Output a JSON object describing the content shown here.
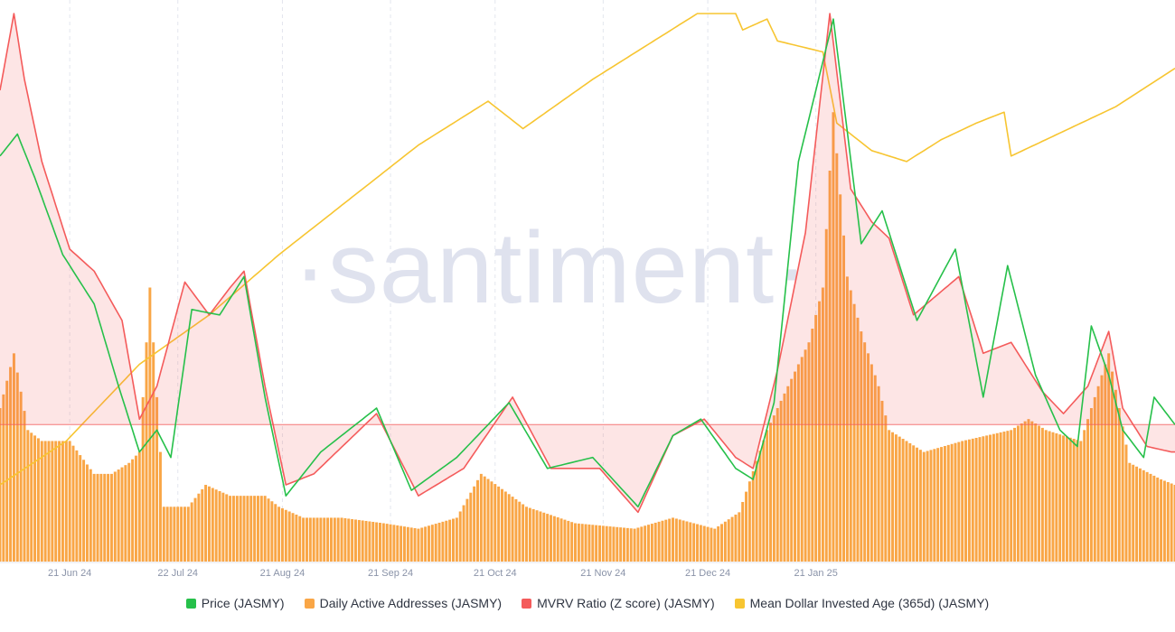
{
  "watermark": "·santiment·",
  "chart_data": {
    "type": "line",
    "x_tick_labels": [
      "21 Jun 24",
      "22 Jul 24",
      "21 Aug 24",
      "21 Sep 24",
      "21 Oct 24",
      "21 Nov 24",
      "21 Dec 24",
      "21 Jan 25"
    ],
    "x_range": [
      "2024-06-01",
      "2025-02-16"
    ],
    "grid": true,
    "legend_position": "bottom",
    "bar_step_days": 1,
    "series": [
      {
        "name": "Price (JASMY)",
        "type": "line",
        "color": "#26c04a",
        "values": [
          [
            0,
            0.74
          ],
          [
            5,
            0.78
          ],
          [
            10,
            0.7
          ],
          [
            18,
            0.56
          ],
          [
            27,
            0.47
          ],
          [
            34,
            0.32
          ],
          [
            40,
            0.2
          ],
          [
            45,
            0.24
          ],
          [
            49,
            0.19
          ],
          [
            55,
            0.46
          ],
          [
            63,
            0.45
          ],
          [
            70,
            0.52
          ],
          [
            76,
            0.3
          ],
          [
            82,
            0.12
          ],
          [
            92,
            0.2
          ],
          [
            108,
            0.28
          ],
          [
            118,
            0.13
          ],
          [
            131,
            0.19
          ],
          [
            146,
            0.29
          ],
          [
            157,
            0.17
          ],
          [
            170,
            0.19
          ],
          [
            183,
            0.1
          ],
          [
            193,
            0.23
          ],
          [
            201,
            0.26
          ],
          [
            211,
            0.17
          ],
          [
            216,
            0.15
          ],
          [
            222,
            0.29
          ],
          [
            229,
            0.73
          ],
          [
            239,
            0.99
          ],
          [
            247,
            0.58
          ],
          [
            253,
            0.64
          ],
          [
            263,
            0.44
          ],
          [
            274,
            0.57
          ],
          [
            282,
            0.3
          ],
          [
            289,
            0.54
          ],
          [
            297,
            0.34
          ],
          [
            304,
            0.24
          ],
          [
            309,
            0.21
          ],
          [
            313,
            0.43
          ],
          [
            318,
            0.34
          ],
          [
            322,
            0.24
          ],
          [
            328,
            0.19
          ],
          [
            331,
            0.3
          ],
          [
            337,
            0.25
          ]
        ]
      },
      {
        "name": "Daily Active Addresses (JASMY)",
        "type": "bar",
        "color": "#f9a646",
        "values": [
          [
            0,
            0.28
          ],
          [
            4,
            0.38
          ],
          [
            8,
            0.24
          ],
          [
            12,
            0.22
          ],
          [
            20,
            0.22
          ],
          [
            27,
            0.16
          ],
          [
            32,
            0.16
          ],
          [
            37,
            0.18
          ],
          [
            40,
            0.2
          ],
          [
            43,
            0.5
          ],
          [
            47,
            0.1
          ],
          [
            54,
            0.1
          ],
          [
            59,
            0.14
          ],
          [
            66,
            0.12
          ],
          [
            76,
            0.12
          ],
          [
            80,
            0.1
          ],
          [
            87,
            0.08
          ],
          [
            98,
            0.08
          ],
          [
            110,
            0.07
          ],
          [
            120,
            0.06
          ],
          [
            131,
            0.08
          ],
          [
            138,
            0.16
          ],
          [
            151,
            0.1
          ],
          [
            165,
            0.07
          ],
          [
            182,
            0.06
          ],
          [
            193,
            0.08
          ],
          [
            205,
            0.06
          ],
          [
            212,
            0.09
          ],
          [
            220,
            0.24
          ],
          [
            226,
            0.32
          ],
          [
            232,
            0.4
          ],
          [
            236,
            0.5
          ],
          [
            239,
            0.82
          ],
          [
            243,
            0.52
          ],
          [
            247,
            0.42
          ],
          [
            252,
            0.32
          ],
          [
            255,
            0.24
          ],
          [
            265,
            0.2
          ],
          [
            276,
            0.22
          ],
          [
            290,
            0.24
          ],
          [
            295,
            0.26
          ],
          [
            300,
            0.24
          ],
          [
            310,
            0.22
          ],
          [
            318,
            0.38
          ],
          [
            324,
            0.18
          ],
          [
            333,
            0.15
          ],
          [
            337,
            0.14
          ]
        ]
      },
      {
        "name": "MVRV Ratio (Z score) (JASMY)",
        "type": "line",
        "color": "#f45b5b",
        "values": [
          [
            0,
            0.86
          ],
          [
            4,
            1.0
          ],
          [
            7,
            0.88
          ],
          [
            12,
            0.73
          ],
          [
            20,
            0.57
          ],
          [
            27,
            0.53
          ],
          [
            35,
            0.44
          ],
          [
            40,
            0.26
          ],
          [
            45,
            0.32
          ],
          [
            53,
            0.51
          ],
          [
            60,
            0.45
          ],
          [
            66,
            0.5
          ],
          [
            70,
            0.53
          ],
          [
            76,
            0.32
          ],
          [
            82,
            0.14
          ],
          [
            90,
            0.16
          ],
          [
            108,
            0.27
          ],
          [
            120,
            0.12
          ],
          [
            133,
            0.17
          ],
          [
            147,
            0.3
          ],
          [
            158,
            0.17
          ],
          [
            172,
            0.17
          ],
          [
            183,
            0.09
          ],
          [
            193,
            0.23
          ],
          [
            202,
            0.26
          ],
          [
            211,
            0.19
          ],
          [
            216,
            0.17
          ],
          [
            223,
            0.35
          ],
          [
            231,
            0.6
          ],
          [
            238,
            1.0
          ],
          [
            244,
            0.68
          ],
          [
            250,
            0.62
          ],
          [
            255,
            0.59
          ],
          [
            262,
            0.45
          ],
          [
            275,
            0.52
          ],
          [
            282,
            0.38
          ],
          [
            290,
            0.4
          ],
          [
            299,
            0.31
          ],
          [
            305,
            0.27
          ],
          [
            312,
            0.32
          ],
          [
            318,
            0.42
          ],
          [
            322,
            0.28
          ],
          [
            329,
            0.21
          ],
          [
            336,
            0.2
          ]
        ]
      },
      {
        "name": "Mean Dollar Invested Age (365d) (JASMY)",
        "type": "line",
        "color": "#f7c531",
        "values": [
          [
            0,
            0.14
          ],
          [
            19,
            0.22
          ],
          [
            40,
            0.36
          ],
          [
            60,
            0.45
          ],
          [
            80,
            0.56
          ],
          [
            100,
            0.66
          ],
          [
            120,
            0.76
          ],
          [
            140,
            0.84
          ],
          [
            150,
            0.79
          ],
          [
            170,
            0.88
          ],
          [
            200,
            1.0
          ],
          [
            211,
            1.0
          ],
          [
            213,
            0.97
          ],
          [
            220,
            0.99
          ],
          [
            223,
            0.95
          ],
          [
            236,
            0.93
          ],
          [
            240,
            0.8
          ],
          [
            250,
            0.75
          ],
          [
            260,
            0.73
          ],
          [
            270,
            0.77
          ],
          [
            280,
            0.8
          ],
          [
            288,
            0.82
          ],
          [
            290,
            0.74
          ],
          [
            300,
            0.77
          ],
          [
            310,
            0.8
          ],
          [
            320,
            0.83
          ],
          [
            337,
            0.9
          ]
        ]
      }
    ]
  }
}
